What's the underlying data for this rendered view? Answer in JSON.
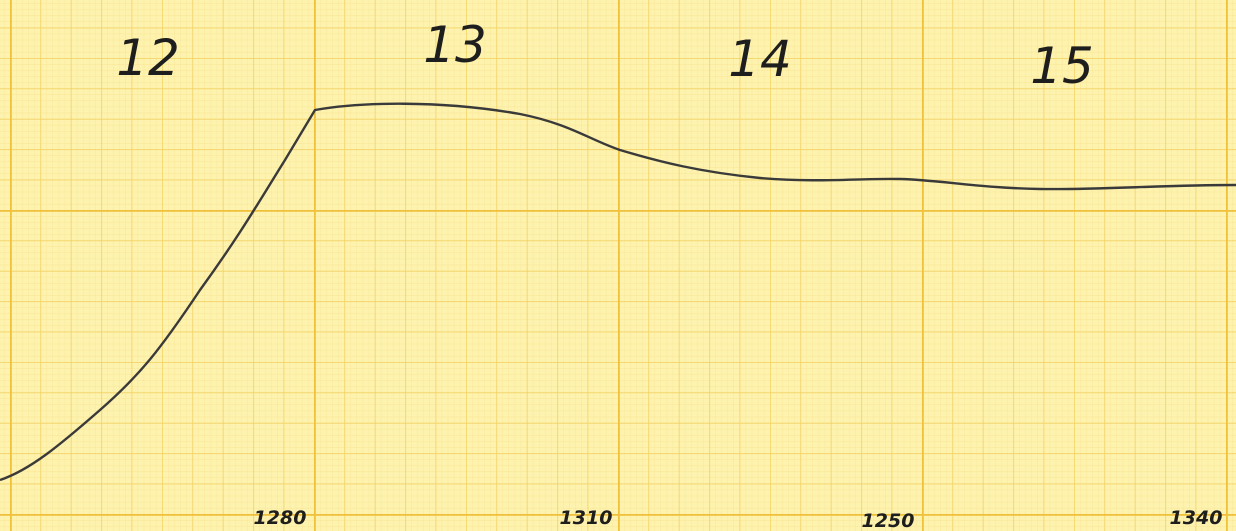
{
  "top_labels": [
    "12",
    "13",
    "14",
    "15"
  ],
  "bottom_labels": [
    "1280",
    "1310",
    "1250",
    "1340"
  ]
}
